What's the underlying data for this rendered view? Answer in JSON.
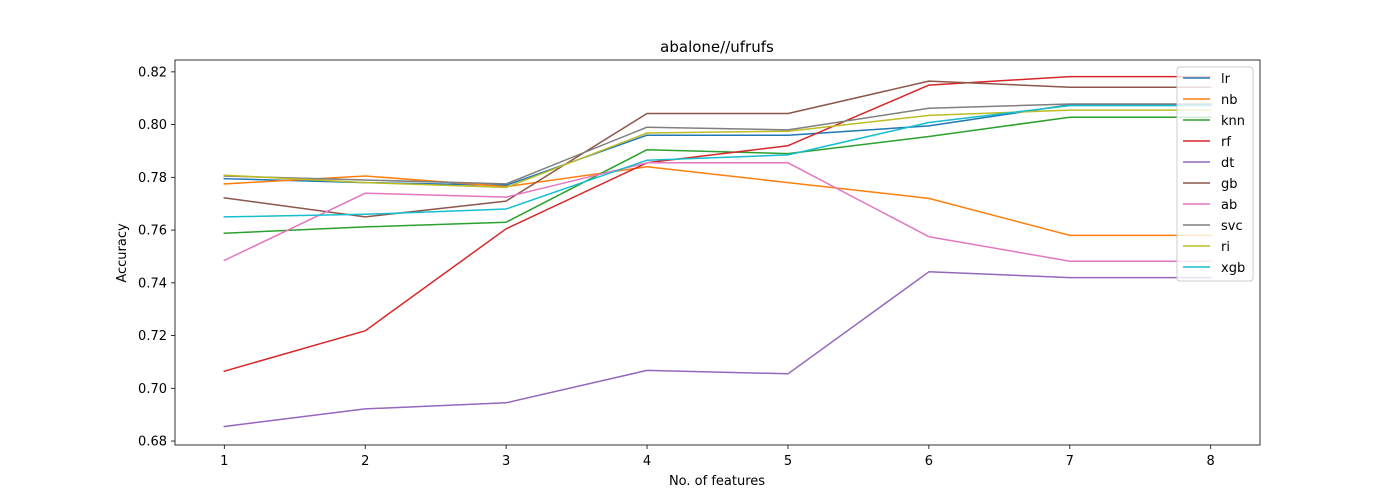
{
  "chart_data": {
    "type": "line",
    "title": "abalone//ufrufs",
    "xlabel": "No. of features",
    "ylabel": "Accuracy",
    "x": [
      1,
      2,
      3,
      4,
      5,
      6,
      7,
      8
    ],
    "xlim": [
      0.65,
      8.35
    ],
    "ylim": [
      0.6785,
      0.8245
    ],
    "yticks": [
      0.68,
      0.7,
      0.72,
      0.74,
      0.76,
      0.78,
      0.8,
      0.82
    ],
    "ytick_labels": [
      "0.68",
      "0.70",
      "0.72",
      "0.74",
      "0.76",
      "0.78",
      "0.80",
      "0.82"
    ],
    "xtick_labels": [
      "1",
      "2",
      "3",
      "4",
      "5",
      "6",
      "7",
      "8"
    ],
    "grid": false,
    "legend_position": "top-right",
    "series": [
      {
        "name": "lr",
        "color": "#1f77b4",
        "values": [
          0.7795,
          0.778,
          0.777,
          0.796,
          0.796,
          0.7995,
          0.8075,
          0.8075
        ]
      },
      {
        "name": "nb",
        "color": "#ff7f0e",
        "values": [
          0.7775,
          0.7805,
          0.7765,
          0.784,
          0.778,
          0.772,
          0.758,
          0.758
        ]
      },
      {
        "name": "knn",
        "color": "#2ca02c",
        "values": [
          0.7588,
          0.7612,
          0.763,
          0.7905,
          0.789,
          0.7955,
          0.8028,
          0.8028
        ]
      },
      {
        "name": "rf",
        "color": "#d62728",
        "values": [
          0.7065,
          0.7218,
          0.7605,
          0.7855,
          0.792,
          0.815,
          0.8182,
          0.8182
        ]
      },
      {
        "name": "dt",
        "color": "#9467bd",
        "values": [
          0.6855,
          0.6922,
          0.6945,
          0.7068,
          0.7055,
          0.7442,
          0.742,
          0.742
        ]
      },
      {
        "name": "gb",
        "color": "#8c564b",
        "values": [
          0.7722,
          0.765,
          0.771,
          0.8042,
          0.8042,
          0.8165,
          0.8142,
          0.8142
        ]
      },
      {
        "name": "ab",
        "color": "#e377c2",
        "values": [
          0.7485,
          0.774,
          0.7725,
          0.7855,
          0.7855,
          0.7575,
          0.7482,
          0.7482
        ]
      },
      {
        "name": "svc",
        "color": "#7f7f7f",
        "values": [
          0.7805,
          0.779,
          0.7775,
          0.799,
          0.798,
          0.8062,
          0.8078,
          0.8078
        ]
      },
      {
        "name": "ri",
        "color": "#bcbd22",
        "values": [
          0.7808,
          0.778,
          0.7762,
          0.7968,
          0.7975,
          0.8035,
          0.8055,
          0.8055
        ]
      },
      {
        "name": "xgb",
        "color": "#17becf",
        "values": [
          0.765,
          0.766,
          0.768,
          0.7865,
          0.7885,
          0.8008,
          0.8072,
          0.8072
        ]
      }
    ]
  }
}
